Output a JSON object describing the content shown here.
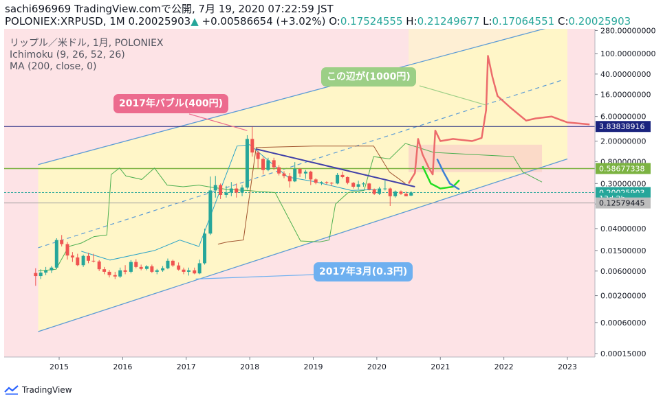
{
  "header": {
    "line1": "sachi696969 TradingView.comで公開, 7月 19, 2020 07:22:59 JST",
    "symbol": "POLONIEX:XRPUSD, 1M",
    "price": "0.20025903",
    "change": "+0.00586654 (+3.02%)",
    "o_label": "O:",
    "o_value": "0.17524555",
    "h_label": "H:",
    "h_value": "0.21249677",
    "l_label": "L:",
    "l_value": "0.17064551",
    "c_label": "C:",
    "c_value": "0.20025903"
  },
  "legend": {
    "line1": "リップル／米ドル, 1月, POLONIEX",
    "line2": "Ichimoku (9, 26, 52, 26)",
    "line3": "MA (200, close, 0)"
  },
  "callouts": {
    "bubble": "2017年バブル(400円)",
    "target": "この辺が(1000円)",
    "march": "2017年3月(0.3円)"
  },
  "footer": {
    "brand": "TradingView"
  },
  "colors": {
    "up": "#26a69a",
    "down": "#ef5350",
    "channel": "#5b9bd5",
    "forecast": "#ec6b6b",
    "ichimoku_lead": "#4caf50",
    "ichimoku_base": "#a0522d",
    "hline_blue": "#1a237e",
    "hline_green": "#7cb342",
    "trend": "#3f3fa8",
    "cloud_bg": "#fde3e6",
    "channel_fill": "#fff6c8"
  },
  "chart_data": {
    "type": "candlestick",
    "scale": "log",
    "x_ticks": [
      "2015",
      "2016",
      "2017",
      "2018",
      "2019",
      "2020",
      "2021",
      "2022",
      "2023"
    ],
    "y_ticks": [
      {
        "value": 280,
        "label": "280.00000000"
      },
      {
        "value": 100,
        "label": "100.00000000"
      },
      {
        "value": 40,
        "label": "40.00000000"
      },
      {
        "value": 16,
        "label": "16.00000000"
      },
      {
        "value": 6,
        "label": "6.00000000"
      },
      {
        "value": 2,
        "label": "2.00000000"
      },
      {
        "value": 0.8,
        "label": "0.80000000"
      },
      {
        "value": 0.3,
        "label": "0.30000000"
      },
      {
        "value": 0.12,
        "label": "0.12"
      },
      {
        "value": 0.04,
        "label": "0.04000000"
      },
      {
        "value": 0.015,
        "label": "0.01500000"
      },
      {
        "value": 0.006,
        "label": "0.00600000"
      },
      {
        "value": 0.002,
        "label": "0.00200000"
      },
      {
        "value": 0.0006,
        "label": "0.00060000"
      },
      {
        "value": 0.00015,
        "label": "0.00015000"
      }
    ],
    "price_labels": [
      {
        "value": 3.83838916,
        "label": "3.83838916",
        "bg": "#1a237e",
        "fg": "#ffffff"
      },
      {
        "value": 0.58677338,
        "label": "0.58677338",
        "bg": "#7cb342",
        "fg": "#ffffff"
      },
      {
        "value": 0.20025903,
        "label": "0.20025903",
        "bg": "#26a69a",
        "fg": "#ffffff"
      },
      {
        "value": 0.155,
        "label": "13d 2h",
        "bg": "#26a69a",
        "fg": "#ffffff"
      },
      {
        "value": 0.12579445,
        "label": "0.12579445",
        "bg": "#bdbdbd",
        "fg": "#131722"
      }
    ],
    "hlines": [
      3.83838916,
      0.58677338,
      0.20025903,
      0.12579445
    ],
    "candles": [
      {
        "t": 2014.63,
        "o": 0.0055,
        "h": 0.0068,
        "l": 0.0031,
        "c": 0.0048
      },
      {
        "t": 2014.71,
        "o": 0.0048,
        "h": 0.0065,
        "l": 0.0042,
        "c": 0.0056
      },
      {
        "t": 2014.79,
        "o": 0.0056,
        "h": 0.0072,
        "l": 0.005,
        "c": 0.0062
      },
      {
        "t": 2014.88,
        "o": 0.0062,
        "h": 0.0075,
        "l": 0.0055,
        "c": 0.007
      },
      {
        "t": 2014.96,
        "o": 0.007,
        "h": 0.026,
        "l": 0.0065,
        "c": 0.024
      },
      {
        "t": 2015.04,
        "o": 0.024,
        "h": 0.03,
        "l": 0.018,
        "c": 0.02
      },
      {
        "t": 2015.13,
        "o": 0.02,
        "h": 0.022,
        "l": 0.01,
        "c": 0.012
      },
      {
        "t": 2015.21,
        "o": 0.012,
        "h": 0.014,
        "l": 0.009,
        "c": 0.011
      },
      {
        "t": 2015.29,
        "o": 0.011,
        "h": 0.013,
        "l": 0.0075,
        "c": 0.0078
      },
      {
        "t": 2015.38,
        "o": 0.0078,
        "h": 0.0125,
        "l": 0.0072,
        "c": 0.0118
      },
      {
        "t": 2015.46,
        "o": 0.0118,
        "h": 0.0135,
        "l": 0.0085,
        "c": 0.0095
      },
      {
        "t": 2015.54,
        "o": 0.0095,
        "h": 0.013,
        "l": 0.0088,
        "c": 0.0092
      },
      {
        "t": 2015.63,
        "o": 0.0092,
        "h": 0.0098,
        "l": 0.006,
        "c": 0.0065
      },
      {
        "t": 2015.71,
        "o": 0.0065,
        "h": 0.0072,
        "l": 0.0052,
        "c": 0.0058
      },
      {
        "t": 2015.79,
        "o": 0.0058,
        "h": 0.0063,
        "l": 0.0045,
        "c": 0.005
      },
      {
        "t": 2015.88,
        "o": 0.005,
        "h": 0.0058,
        "l": 0.0042,
        "c": 0.0047
      },
      {
        "t": 2015.96,
        "o": 0.0047,
        "h": 0.007,
        "l": 0.0044,
        "c": 0.0062
      },
      {
        "t": 2016.04,
        "o": 0.0062,
        "h": 0.0078,
        "l": 0.0052,
        "c": 0.0058
      },
      {
        "t": 2016.13,
        "o": 0.0058,
        "h": 0.0098,
        "l": 0.0054,
        "c": 0.009
      },
      {
        "t": 2016.21,
        "o": 0.009,
        "h": 0.0102,
        "l": 0.0068,
        "c": 0.0072
      },
      {
        "t": 2016.29,
        "o": 0.0072,
        "h": 0.008,
        "l": 0.0062,
        "c": 0.0066
      },
      {
        "t": 2016.38,
        "o": 0.0066,
        "h": 0.0078,
        "l": 0.0062,
        "c": 0.0074
      },
      {
        "t": 2016.46,
        "o": 0.0074,
        "h": 0.008,
        "l": 0.0055,
        "c": 0.0058
      },
      {
        "t": 2016.54,
        "o": 0.0058,
        "h": 0.0066,
        "l": 0.0052,
        "c": 0.0062
      },
      {
        "t": 2016.63,
        "o": 0.0062,
        "h": 0.0075,
        "l": 0.0058,
        "c": 0.0068
      },
      {
        "t": 2016.71,
        "o": 0.0068,
        "h": 0.0105,
        "l": 0.0065,
        "c": 0.0095
      },
      {
        "t": 2016.79,
        "o": 0.0095,
        "h": 0.01,
        "l": 0.0072,
        "c": 0.0077
      },
      {
        "t": 2016.88,
        "o": 0.0077,
        "h": 0.0088,
        "l": 0.0061,
        "c": 0.0064
      },
      {
        "t": 2016.96,
        "o": 0.0064,
        "h": 0.007,
        "l": 0.0052,
        "c": 0.0058
      },
      {
        "t": 2017.04,
        "o": 0.0058,
        "h": 0.007,
        "l": 0.0049,
        "c": 0.0062
      },
      {
        "t": 2017.13,
        "o": 0.0062,
        "h": 0.007,
        "l": 0.0052,
        "c": 0.0054
      },
      {
        "t": 2017.21,
        "o": 0.0054,
        "h": 0.01,
        "l": 0.0052,
        "c": 0.0085
      },
      {
        "t": 2017.29,
        "o": 0.0085,
        "h": 0.04,
        "l": 0.008,
        "c": 0.032
      },
      {
        "t": 2017.38,
        "o": 0.032,
        "h": 0.41,
        "l": 0.03,
        "c": 0.22
      },
      {
        "t": 2017.46,
        "o": 0.22,
        "h": 0.42,
        "l": 0.16,
        "c": 0.28
      },
      {
        "t": 2017.54,
        "o": 0.28,
        "h": 0.3,
        "l": 0.15,
        "c": 0.18
      },
      {
        "t": 2017.63,
        "o": 0.18,
        "h": 0.27,
        "l": 0.16,
        "c": 0.2
      },
      {
        "t": 2017.71,
        "o": 0.2,
        "h": 0.32,
        "l": 0.17,
        "c": 0.24
      },
      {
        "t": 2017.79,
        "o": 0.24,
        "h": 0.3,
        "l": 0.16,
        "c": 0.2
      },
      {
        "t": 2017.88,
        "o": 0.2,
        "h": 0.28,
        "l": 0.17,
        "c": 0.25
      },
      {
        "t": 2017.96,
        "o": 0.25,
        "h": 2.6,
        "l": 0.23,
        "c": 2.2
      },
      {
        "t": 2018.04,
        "o": 2.2,
        "h": 3.8,
        "l": 1.0,
        "c": 1.2
      },
      {
        "t": 2018.13,
        "o": 1.2,
        "h": 1.3,
        "l": 0.58,
        "c": 0.9
      },
      {
        "t": 2018.21,
        "o": 0.9,
        "h": 1.0,
        "l": 0.45,
        "c": 0.55
      },
      {
        "t": 2018.29,
        "o": 0.55,
        "h": 0.95,
        "l": 0.52,
        "c": 0.85
      },
      {
        "t": 2018.38,
        "o": 0.85,
        "h": 0.95,
        "l": 0.55,
        "c": 0.62
      },
      {
        "t": 2018.46,
        "o": 0.62,
        "h": 0.68,
        "l": 0.43,
        "c": 0.47
      },
      {
        "t": 2018.54,
        "o": 0.47,
        "h": 0.52,
        "l": 0.38,
        "c": 0.42
      },
      {
        "t": 2018.63,
        "o": 0.42,
        "h": 0.48,
        "l": 0.25,
        "c": 0.33
      },
      {
        "t": 2018.71,
        "o": 0.33,
        "h": 0.78,
        "l": 0.32,
        "c": 0.58
      },
      {
        "t": 2018.79,
        "o": 0.58,
        "h": 0.6,
        "l": 0.4,
        "c": 0.47
      },
      {
        "t": 2018.88,
        "o": 0.47,
        "h": 0.55,
        "l": 0.37,
        "c": 0.51
      },
      {
        "t": 2018.96,
        "o": 0.51,
        "h": 0.53,
        "l": 0.28,
        "c": 0.36
      },
      {
        "t": 2019.04,
        "o": 0.36,
        "h": 0.38,
        "l": 0.29,
        "c": 0.31
      },
      {
        "t": 2019.13,
        "o": 0.31,
        "h": 0.33,
        "l": 0.28,
        "c": 0.32
      },
      {
        "t": 2019.21,
        "o": 0.32,
        "h": 0.33,
        "l": 0.29,
        "c": 0.31
      },
      {
        "t": 2019.29,
        "o": 0.31,
        "h": 0.32,
        "l": 0.27,
        "c": 0.3
      },
      {
        "t": 2019.38,
        "o": 0.3,
        "h": 0.48,
        "l": 0.29,
        "c": 0.44
      },
      {
        "t": 2019.46,
        "o": 0.44,
        "h": 0.51,
        "l": 0.38,
        "c": 0.4
      },
      {
        "t": 2019.54,
        "o": 0.4,
        "h": 0.41,
        "l": 0.29,
        "c": 0.31
      },
      {
        "t": 2019.63,
        "o": 0.31,
        "h": 0.32,
        "l": 0.24,
        "c": 0.26
      },
      {
        "t": 2019.71,
        "o": 0.26,
        "h": 0.34,
        "l": 0.23,
        "c": 0.29
      },
      {
        "t": 2019.79,
        "o": 0.29,
        "h": 0.32,
        "l": 0.26,
        "c": 0.3
      },
      {
        "t": 2019.88,
        "o": 0.3,
        "h": 0.31,
        "l": 0.22,
        "c": 0.23
      },
      {
        "t": 2019.96,
        "o": 0.23,
        "h": 0.24,
        "l": 0.18,
        "c": 0.19
      },
      {
        "t": 2020.04,
        "o": 0.19,
        "h": 0.26,
        "l": 0.18,
        "c": 0.24
      },
      {
        "t": 2020.13,
        "o": 0.24,
        "h": 0.34,
        "l": 0.22,
        "c": 0.24
      },
      {
        "t": 2020.21,
        "o": 0.24,
        "h": 0.25,
        "l": 0.11,
        "c": 0.17
      },
      {
        "t": 2020.29,
        "o": 0.17,
        "h": 0.22,
        "l": 0.16,
        "c": 0.21
      },
      {
        "t": 2020.38,
        "o": 0.21,
        "h": 0.22,
        "l": 0.18,
        "c": 0.19
      },
      {
        "t": 2020.46,
        "o": 0.19,
        "h": 0.21,
        "l": 0.17,
        "c": 0.17
      },
      {
        "t": 2020.54,
        "o": 0.175,
        "h": 0.2125,
        "l": 0.1706,
        "c": 0.2003
      }
    ],
    "ichimoku_leading_a": [
      [
        2014.67,
        0.006
      ],
      [
        2014.95,
        0.0065
      ],
      [
        2015.15,
        0.018
      ],
      [
        2015.35,
        0.021
      ],
      [
        2015.55,
        0.028
      ],
      [
        2015.75,
        0.03
      ],
      [
        2015.82,
        0.45
      ],
      [
        2015.95,
        0.6
      ],
      [
        2016.05,
        0.42
      ],
      [
        2016.3,
        0.36
      ],
      [
        2016.5,
        0.6
      ],
      [
        2016.7,
        0.28
      ],
      [
        2016.95,
        0.26
      ],
      [
        2017.2,
        0.28
      ],
      [
        2017.35,
        0.26
      ],
      [
        2017.65,
        0.23
      ],
      [
        2017.95,
        0.22
      ],
      [
        2018.15,
        0.21
      ],
      [
        2018.4,
        0.2
      ],
      [
        2018.8,
        0.023
      ],
      [
        2019.1,
        0.022
      ],
      [
        2019.25,
        0.024
      ],
      [
        2019.35,
        0.12
      ],
      [
        2019.55,
        0.2
      ],
      [
        2019.8,
        0.22
      ],
      [
        2019.95,
        1.0
      ],
      [
        2020.2,
        0.9
      ],
      [
        2020.45,
        1.8
      ],
      [
        2020.9,
        1.2
      ],
      [
        2021.5,
        1.1
      ],
      [
        2022.15,
        1.0
      ],
      [
        2022.3,
        0.5
      ],
      [
        2022.6,
        0.32
      ]
    ],
    "ichimoku_base": [
      [
        2017.5,
        0.02
      ],
      [
        2017.65,
        0.022
      ],
      [
        2017.9,
        0.024
      ],
      [
        2018.1,
        1.5
      ],
      [
        2019.0,
        1.6
      ],
      [
        2019.5,
        1.6
      ],
      [
        2019.95,
        1.6
      ],
      [
        2020.2,
        0.5
      ],
      [
        2020.45,
        0.3
      ]
    ],
    "ma200": [
      [
        2015.35,
        0.0145
      ],
      [
        2015.8,
        0.0098
      ],
      [
        2016.5,
        0.015
      ],
      [
        2016.9,
        0.024
      ],
      [
        2017.2,
        0.018
      ],
      [
        2017.8,
        1.6
      ],
      [
        2018.0,
        1.7
      ],
      [
        2018.6,
        0.4
      ],
      [
        2019.0,
        0.33
      ],
      [
        2019.6,
        0.22
      ],
      [
        2020.0,
        0.23
      ]
    ],
    "forecast": [
      [
        2020.5,
        0.3
      ],
      [
        2020.6,
        0.48
      ],
      [
        2020.65,
        2.2
      ],
      [
        2020.72,
        1.1
      ],
      [
        2020.82,
        0.6
      ],
      [
        2020.88,
        0.45
      ],
      [
        2020.92,
        3.2
      ],
      [
        2021.0,
        2.0
      ],
      [
        2021.2,
        2.2
      ],
      [
        2021.5,
        2.0
      ],
      [
        2021.65,
        2.3
      ],
      [
        2021.72,
        8.0
      ],
      [
        2021.75,
        90
      ],
      [
        2021.82,
        35
      ],
      [
        2021.9,
        15
      ],
      [
        2022.1,
        9
      ],
      [
        2022.35,
        5
      ],
      [
        2022.5,
        5.5
      ],
      [
        2022.75,
        6.0
      ],
      [
        2023.0,
        4.6
      ],
      [
        2023.35,
        4.2
      ]
    ],
    "forecast_green": [
      [
        2020.72,
        0.65
      ],
      [
        2020.85,
        0.3
      ],
      [
        2021.0,
        0.24
      ],
      [
        2021.2,
        0.26
      ],
      [
        2021.3,
        0.35
      ]
    ],
    "forecast_blue": [
      [
        2020.95,
        0.9
      ],
      [
        2021.05,
        0.5
      ],
      [
        2021.15,
        0.3
      ],
      [
        2021.3,
        0.23
      ]
    ],
    "channel": {
      "upper": [
        [
          2014.67,
          0.7
        ],
        [
          2023.0,
          400
        ]
      ],
      "lower": [
        [
          2014.67,
          0.0004
        ],
        [
          2023.0,
          0.9
        ]
      ],
      "middle": [
        [
          2014.67,
          0.017
        ],
        [
          2022.9,
          30
        ]
      ]
    },
    "trendline": [
      [
        2018.1,
        1.4
      ],
      [
        2020.6,
        0.26
      ]
    ]
  }
}
